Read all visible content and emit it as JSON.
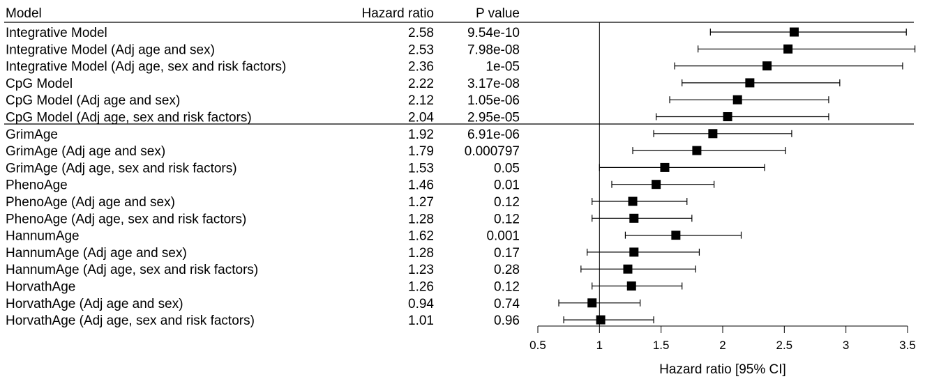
{
  "chart_data": {
    "type": "forest",
    "headers": {
      "model": "Model",
      "hr": "Hazard ratio",
      "p": "P value"
    },
    "xlabel": "Hazard ratio [95% CI]",
    "xlim": [
      0.5,
      3.5
    ],
    "xticks": [
      0.5,
      1,
      1.5,
      2,
      2.5,
      3,
      3.5
    ],
    "xtick_labels": [
      "0.5",
      "1",
      "1.5",
      "2",
      "2.5",
      "3",
      "3.5"
    ],
    "reference_line": 1,
    "group_separator_after": 5,
    "rows": [
      {
        "label": "Integrative Model",
        "hr": 2.58,
        "hr_text": "2.58",
        "p_text": "9.54e-10",
        "lo": 1.9,
        "hi": 3.49
      },
      {
        "label": "Integrative Model (Adj age and sex)",
        "hr": 2.53,
        "hr_text": "2.53",
        "p_text": "7.98e-08",
        "lo": 1.8,
        "hi": 3.56
      },
      {
        "label": "Integrative Model (Adj age, sex and risk factors)",
        "hr": 2.36,
        "hr_text": "2.36",
        "p_text": "1e-05",
        "lo": 1.61,
        "hi": 3.46
      },
      {
        "label": "CpG Model",
        "hr": 2.22,
        "hr_text": "2.22",
        "p_text": "3.17e-08",
        "lo": 1.67,
        "hi": 2.95
      },
      {
        "label": "CpG Model (Adj age and sex)",
        "hr": 2.12,
        "hr_text": "2.12",
        "p_text": "1.05e-06",
        "lo": 1.57,
        "hi": 2.86
      },
      {
        "label": "CpG Model (Adj age, sex and risk factors)",
        "hr": 2.04,
        "hr_text": "2.04",
        "p_text": "2.95e-05",
        "lo": 1.46,
        "hi": 2.86
      },
      {
        "label": "GrimAge",
        "hr": 1.92,
        "hr_text": "1.92",
        "p_text": "6.91e-06",
        "lo": 1.44,
        "hi": 2.56
      },
      {
        "label": "GrimAge (Adj age and sex)",
        "hr": 1.79,
        "hr_text": "1.79",
        "p_text": "0.000797",
        "lo": 1.27,
        "hi": 2.51
      },
      {
        "label": "GrimAge (Adj age, sex and risk factors)",
        "hr": 1.53,
        "hr_text": "1.53",
        "p_text": "0.05",
        "lo": 1.0,
        "hi": 2.34
      },
      {
        "label": "PhenoAge",
        "hr": 1.46,
        "hr_text": "1.46",
        "p_text": "0.01",
        "lo": 1.1,
        "hi": 1.93
      },
      {
        "label": "PhenoAge (Adj age and sex)",
        "hr": 1.27,
        "hr_text": "1.27",
        "p_text": "0.12",
        "lo": 0.94,
        "hi": 1.71
      },
      {
        "label": "PhenoAge (Adj age, sex and risk factors)",
        "hr": 1.28,
        "hr_text": "1.28",
        "p_text": "0.12",
        "lo": 0.94,
        "hi": 1.75
      },
      {
        "label": "HannumAge",
        "hr": 1.62,
        "hr_text": "1.62",
        "p_text": "0.001",
        "lo": 1.21,
        "hi": 2.15
      },
      {
        "label": "HannumAge (Adj age and sex)",
        "hr": 1.28,
        "hr_text": "1.28",
        "p_text": "0.17",
        "lo": 0.9,
        "hi": 1.81
      },
      {
        "label": "HannumAge (Adj age, sex and risk factors)",
        "hr": 1.23,
        "hr_text": "1.23",
        "p_text": "0.28",
        "lo": 0.85,
        "hi": 1.78
      },
      {
        "label": "HorvathAge",
        "hr": 1.26,
        "hr_text": "1.26",
        "p_text": "0.12",
        "lo": 0.94,
        "hi": 1.67
      },
      {
        "label": "HorvathAge (Adj age and sex)",
        "hr": 0.94,
        "hr_text": "0.94",
        "p_text": "0.74",
        "lo": 0.67,
        "hi": 1.33
      },
      {
        "label": "HorvathAge (Adj age, sex and risk factors)",
        "hr": 1.01,
        "hr_text": "1.01",
        "p_text": "0.96",
        "lo": 0.71,
        "hi": 1.44
      }
    ]
  }
}
